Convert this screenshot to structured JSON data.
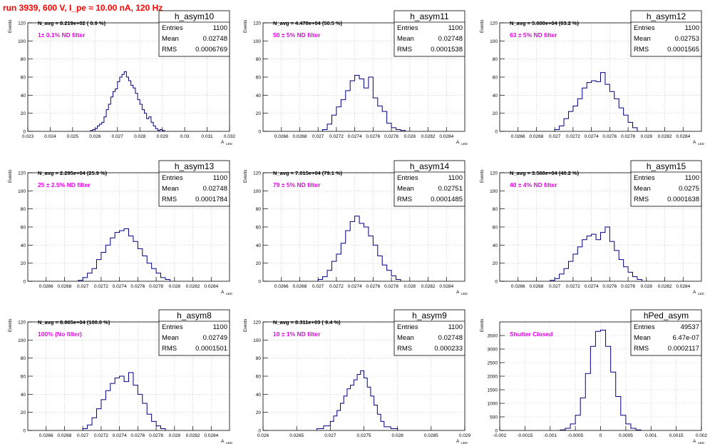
{
  "run_title": "run 3939,   600 V, I_pe ≈ 10.00 nA, 120 Hz",
  "stats_labels": {
    "entries": "Entries",
    "mean": "Mean",
    "rms": "RMS"
  },
  "y_axis_label": "Events",
  "x_axis_label": "A",
  "x_axis_sub": "LED",
  "colors": {
    "histogram": "#000080",
    "annotation": "#ee00ee",
    "title": "#ff0000",
    "grid": "#bbbbbb"
  },
  "chart_data": [
    {
      "type": "histogram",
      "name": "h_asym10",
      "navg": "N_avg = 8.219e+02 ( 0.9 %)",
      "filter": "1± 0.1% ND filter",
      "entries": "1100",
      "mean": "0.02748",
      "rms": "0.0006769",
      "xlim": [
        0.023,
        0.032
      ],
      "ylim": [
        0,
        120
      ],
      "xticks": [
        "0.023",
        "0.024",
        "0.025",
        "0.026",
        "0.027",
        "0.028",
        "0.029",
        "0.03",
        "0.031",
        "0.032"
      ],
      "yticks": [
        "0",
        "20",
        "40",
        "60",
        "80",
        "100",
        "120"
      ],
      "edges": [
        0.0258,
        0.0259,
        0.026,
        0.0261,
        0.0262,
        0.0263,
        0.0264,
        0.0265,
        0.0266,
        0.0267,
        0.0268,
        0.0269,
        0.027,
        0.0271,
        0.0272,
        0.0273,
        0.0274,
        0.0275,
        0.0276,
        0.0277,
        0.0278,
        0.0279,
        0.028,
        0.0281,
        0.0282,
        0.0283,
        0.0284,
        0.0285,
        0.0286,
        0.0287,
        0.0288,
        0.0289,
        0.029,
        0.0291
      ],
      "counts": [
        1,
        2,
        3,
        6,
        8,
        10,
        16,
        24,
        30,
        38,
        44,
        47,
        55,
        60,
        63,
        66,
        60,
        56,
        51,
        48,
        42,
        35,
        30,
        24,
        20,
        14,
        16,
        10,
        6,
        3,
        1,
        2,
        1
      ]
    },
    {
      "type": "histogram",
      "name": "h_asym11",
      "navg": "N_avg = 4.478e+04 (50.5 %)",
      "filter": "50 ± 5% ND filter",
      "entries": "1100",
      "mean": "0.02748",
      "rms": "0.0001538",
      "xlim": [
        0.0264,
        0.0286
      ],
      "ylim": [
        0,
        120
      ],
      "xticks": [
        "0.0266",
        "0.0268",
        "0.027",
        "0.0272",
        "0.0274",
        "0.0276",
        "0.0278",
        "0.028",
        "0.0282",
        "0.0284"
      ],
      "yticks": [
        "0",
        "20",
        "40",
        "60",
        "80",
        "100",
        "120"
      ],
      "edges": [
        0.02705,
        0.0271,
        0.02715,
        0.0272,
        0.02725,
        0.0273,
        0.02735,
        0.0274,
        0.02745,
        0.0275,
        0.02755,
        0.0276,
        0.02765,
        0.0277,
        0.02775,
        0.0278,
        0.02785,
        0.0279,
        0.02795
      ],
      "counts": [
        2,
        8,
        18,
        27,
        35,
        45,
        56,
        62,
        58,
        48,
        60,
        37,
        28,
        22,
        9,
        4,
        2,
        1
      ]
    },
    {
      "type": "histogram",
      "name": "h_asym12",
      "navg": "N_avg = 5.600e+04 (63.2 %)",
      "filter": "63 ± 5% ND filter",
      "entries": "1100",
      "mean": "0.02753",
      "rms": "0.0001565",
      "xlim": [
        0.0264,
        0.0286
      ],
      "ylim": [
        0,
        120
      ],
      "xticks": [
        "0.0266",
        "0.0268",
        "0.027",
        "0.0272",
        "0.0274",
        "0.0276",
        "0.0278",
        "0.028",
        "0.0282",
        "0.0284"
      ],
      "yticks": [
        "0",
        "20",
        "40",
        "60",
        "80",
        "100",
        "120"
      ],
      "edges": [
        0.027,
        0.02705,
        0.0271,
        0.02715,
        0.0272,
        0.02725,
        0.0273,
        0.02735,
        0.0274,
        0.02745,
        0.0275,
        0.02755,
        0.0276,
        0.02765,
        0.0277,
        0.02775,
        0.0278,
        0.02785,
        0.0279
      ],
      "counts": [
        2,
        6,
        14,
        22,
        28,
        36,
        48,
        54,
        56,
        55,
        65,
        52,
        44,
        36,
        26,
        18,
        10,
        4
      ]
    },
    {
      "type": "histogram",
      "name": "h_asym13",
      "navg": "N_avg = 2.295e+04 (25.9 %)",
      "filter": "25 ± 2.5% ND filter",
      "entries": "1100",
      "mean": "0.02748",
      "rms": "0.0001784",
      "xlim": [
        0.0264,
        0.0286
      ],
      "ylim": [
        0,
        120
      ],
      "xticks": [
        "0.0266",
        "0.0268",
        "0.027",
        "0.0272",
        "0.0274",
        "0.0276",
        "0.0278",
        "0.028",
        "0.0282",
        "0.0284"
      ],
      "yticks": [
        "0",
        "20",
        "40",
        "60",
        "80",
        "100",
        "120"
      ],
      "edges": [
        0.02695,
        0.027,
        0.02705,
        0.0271,
        0.02715,
        0.0272,
        0.02725,
        0.0273,
        0.02735,
        0.0274,
        0.02745,
        0.0275,
        0.02755,
        0.0276,
        0.02765,
        0.0277,
        0.02775,
        0.0278,
        0.02785,
        0.0279,
        0.02795
      ],
      "counts": [
        1,
        4,
        9,
        14,
        24,
        32,
        40,
        48,
        54,
        56,
        58,
        50,
        44,
        36,
        28,
        20,
        14,
        9,
        4,
        2
      ]
    },
    {
      "type": "histogram",
      "name": "h_asym14",
      "navg": "N_avg = 7.015e+04 (79.1 %)",
      "filter": "79 ± 5% ND filter",
      "entries": "1100",
      "mean": "0.02751",
      "rms": "0.0001485",
      "xlim": [
        0.0264,
        0.0286
      ],
      "ylim": [
        0,
        120
      ],
      "xticks": [
        "0.0266",
        "0.0268",
        "0.027",
        "0.0272",
        "0.0274",
        "0.0276",
        "0.0278",
        "0.028",
        "0.0282",
        "0.0284"
      ],
      "yticks": [
        "0",
        "20",
        "40",
        "60",
        "80",
        "100",
        "120"
      ],
      "edges": [
        0.027,
        0.02705,
        0.0271,
        0.02715,
        0.0272,
        0.02725,
        0.0273,
        0.02735,
        0.0274,
        0.02745,
        0.0275,
        0.02755,
        0.0276,
        0.02765,
        0.0277,
        0.02775,
        0.0278,
        0.02785,
        0.0279
      ],
      "counts": [
        2,
        5,
        12,
        22,
        30,
        42,
        56,
        66,
        72,
        64,
        60,
        50,
        40,
        28,
        18,
        12,
        6,
        2
      ]
    },
    {
      "type": "histogram",
      "name": "h_asym15",
      "navg": "N_avg = 3.560e+04 (40.2 %)",
      "filter": "40 ± 4% ND filter",
      "entries": "1100",
      "mean": "0.0275",
      "rms": "0.0001638",
      "xlim": [
        0.0264,
        0.0286
      ],
      "ylim": [
        0,
        120
      ],
      "xticks": [
        "0.0266",
        "0.0268",
        "0.027",
        "0.0272",
        "0.0274",
        "0.0276",
        "0.0278",
        "0.028",
        "0.0282",
        "0.0284"
      ],
      "yticks": [
        "0",
        "20",
        "40",
        "60",
        "80",
        "100",
        "120"
      ],
      "edges": [
        0.02695,
        0.027,
        0.02705,
        0.0271,
        0.02715,
        0.0272,
        0.02725,
        0.0273,
        0.02735,
        0.0274,
        0.02745,
        0.0275,
        0.02755,
        0.0276,
        0.02765,
        0.0277,
        0.02775,
        0.0278,
        0.02785,
        0.0279,
        0.02795
      ],
      "counts": [
        1,
        3,
        8,
        14,
        22,
        30,
        38,
        46,
        50,
        52,
        46,
        54,
        60,
        44,
        34,
        24,
        16,
        10,
        5,
        2
      ]
    },
    {
      "type": "histogram",
      "name": "h_asym8",
      "navg": "N_avg = 8.865e+04 (100.0 %)",
      "filter": "100% (No filter)",
      "entries": "1100",
      "mean": "0.02749",
      "rms": "0.0001501",
      "xlim": [
        0.0264,
        0.0286
      ],
      "ylim": [
        0,
        120
      ],
      "xticks": [
        "0.0266",
        "0.0268",
        "0.027",
        "0.0272",
        "0.0274",
        "0.0276",
        "0.0278",
        "0.028",
        "0.0282",
        "0.0284"
      ],
      "yticks": [
        "0",
        "20",
        "40",
        "60",
        "80",
        "100",
        "120"
      ],
      "edges": [
        0.027,
        0.02705,
        0.0271,
        0.02715,
        0.0272,
        0.02725,
        0.0273,
        0.02735,
        0.0274,
        0.02745,
        0.0275,
        0.02755,
        0.0276,
        0.02765,
        0.0277,
        0.02775,
        0.0278,
        0.02785,
        0.0279
      ],
      "counts": [
        2,
        6,
        14,
        24,
        34,
        44,
        52,
        58,
        60,
        54,
        64,
        50,
        40,
        30,
        18,
        10,
        5,
        2
      ]
    },
    {
      "type": "histogram",
      "name": "h_asym9",
      "navg": "N_avg = 8.311e+03 ( 9.4 %)",
      "filter": "10 ± 1% ND filter",
      "entries": "1100",
      "mean": "0.02748",
      "rms": "0.000233",
      "xlim": [
        0.026,
        0.029
      ],
      "ylim": [
        0,
        120
      ],
      "xticks": [
        "0.026",
        "0.0265",
        "0.027",
        "0.0275",
        "0.028",
        "0.0285",
        "0.029"
      ],
      "yticks": [
        "0",
        "20",
        "40",
        "60",
        "80",
        "100",
        "120"
      ],
      "edges": [
        0.0268,
        0.0269,
        0.027,
        0.02705,
        0.0271,
        0.02715,
        0.0272,
        0.02725,
        0.0273,
        0.02735,
        0.0274,
        0.02745,
        0.0275,
        0.02755,
        0.0276,
        0.02765,
        0.0277,
        0.02775,
        0.0278,
        0.0279,
        0.028
      ],
      "counts": [
        2,
        5,
        10,
        16,
        22,
        30,
        38,
        46,
        50,
        56,
        62,
        66,
        58,
        48,
        38,
        28,
        18,
        10,
        4,
        2
      ]
    },
    {
      "type": "histogram",
      "name": "hPed_asym",
      "navg": "",
      "filter": "Shutter Closed",
      "entries": "49537",
      "mean": "6.47e-07",
      "rms": "0.0002117",
      "xlim": [
        -0.002,
        0.002
      ],
      "ylim": [
        0,
        4000
      ],
      "xticks": [
        "-0.002",
        "-0.0015",
        "-0.001",
        "-0.0005",
        "0",
        "0.0005",
        "0.001",
        "0.0015",
        "0.002"
      ],
      "yticks": [
        "0",
        "500",
        "1000",
        "1500",
        "2000",
        "2500",
        "3000",
        "3500"
      ],
      "edges": [
        -0.0008,
        -0.0007,
        -0.0006,
        -0.0005,
        -0.0004,
        -0.0003,
        -0.0002,
        -0.0001,
        0.0,
        0.0001,
        0.0002,
        0.0003,
        0.0004,
        0.0005,
        0.0006,
        0.0007,
        0.0008
      ],
      "counts": [
        20,
        80,
        240,
        560,
        1200,
        2100,
        3100,
        3650,
        3700,
        3100,
        2150,
        1250,
        560,
        240,
        80,
        20
      ]
    }
  ]
}
